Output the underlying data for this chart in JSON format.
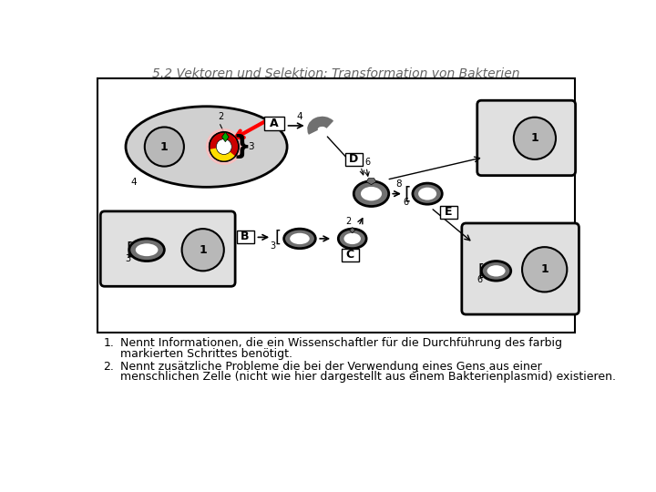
{
  "title": "5.2 Vektoren und Selektion: Transformation von Bakterien",
  "title_fontsize": 10,
  "title_color": "#666666",
  "text1_num": "1.",
  "text1a": "Nennt Informationen, die ein Wissenschaftler für die Durchführung des farbig",
  "text1b": "markierten Schrittes benötigt.",
  "text2_num": "2.",
  "text2a": "Nennt zusätzliche Probleme die bei der Verwendung eines Gens aus einer",
  "text2b": "menschlichen Zelle (nicht wie hier dargestellt aus einem Bakterienplasmid) existieren.",
  "bg_color": "#ffffff",
  "gray_fill": "#b8b8b8",
  "dark_gray": "#707070",
  "light_gray": "#d0d0d0",
  "lighter_gray": "#e0e0e0",
  "red_fill": "#cc0000",
  "yellow_fill": "#ffdd00",
  "green_fill": "#00aa00",
  "pink_fill": "#ffbbbb"
}
